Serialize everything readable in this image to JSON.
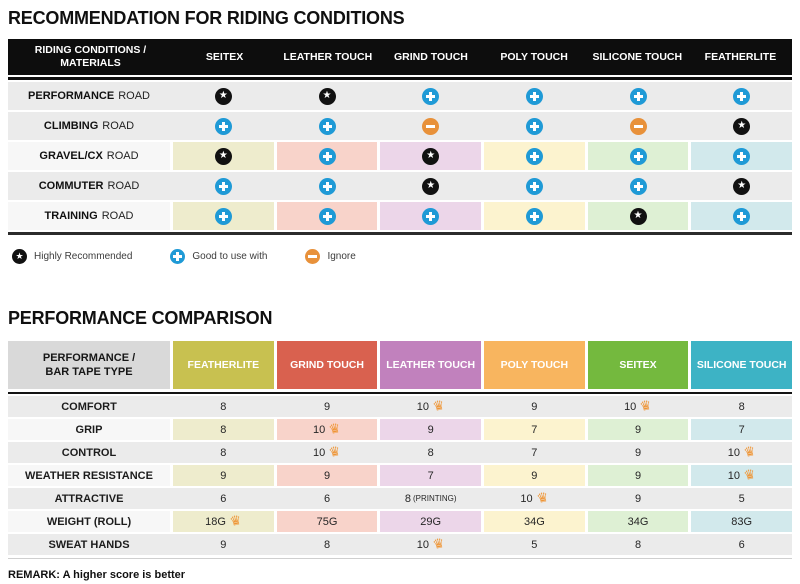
{
  "colors": {
    "named": {
      "header-black": "#0d0d0d",
      "row-gray": "#ebebeb",
      "label-light": "#f7f7f7",
      "icon-black": "#111111",
      "icon-blue": "#1f9ad6",
      "icon-orange": "#e8913a",
      "crown-orange": "#ef9433",
      "t2-header-gray": "#d9d9d9"
    },
    "tint_palette": [
      "#eeeccd",
      "#f8d3ca",
      "#ecd6e9",
      "#fcf3cf",
      "#def0d4",
      "#d2e9ec"
    ]
  },
  "chart_data": [
    {
      "type": "table",
      "title": "RECOMMENDATION FOR RIDING CONDITIONS",
      "header_label": [
        "RIDING CONDITIONS /",
        "MATERIALS"
      ],
      "columns": [
        "SEITEX",
        "LEATHER TOUCH",
        "GRIND TOUCH",
        "POLY TOUCH",
        "SILICONE TOUCH",
        "FEATHERLITE"
      ],
      "rows": [
        {
          "material": {
            "bold": "PERFORMANCE",
            "rest": "ROAD"
          },
          "cells": [
            "star",
            "star",
            "plus",
            "plus",
            "plus",
            "plus"
          ]
        },
        {
          "material": {
            "bold": "CLIMBING",
            "rest": "ROAD"
          },
          "cells": [
            "plus",
            "plus",
            "minus",
            "plus",
            "minus",
            "star"
          ]
        },
        {
          "material": {
            "bold": "GRAVEL/CX",
            "rest": "ROAD"
          },
          "cells": [
            "star",
            "plus",
            "star",
            "plus",
            "plus",
            "plus"
          ]
        },
        {
          "material": {
            "bold": "COMMUTER",
            "rest": "ROAD"
          },
          "cells": [
            "plus",
            "plus",
            "star",
            "plus",
            "plus",
            "star"
          ]
        },
        {
          "material": {
            "bold": "TRAINING",
            "rest": "ROAD"
          },
          "cells": [
            "plus",
            "plus",
            "plus",
            "plus",
            "star",
            "plus"
          ]
        }
      ],
      "legend": [
        {
          "icon": "star",
          "label": "Highly Recommended"
        },
        {
          "icon": "plus",
          "label": "Good to use with"
        },
        {
          "icon": "minus",
          "label": "Ignore"
        }
      ]
    },
    {
      "type": "table",
      "title": "PERFORMANCE COMPARISON",
      "header_label": [
        "PERFORMANCE /",
        "BAR TAPE TYPE"
      ],
      "columns": [
        {
          "label": "FEATHERLITE",
          "color": "#c8c150"
        },
        {
          "label": "GRIND TOUCH",
          "color": "#d9614f"
        },
        {
          "label": "LEATHER TOUCH",
          "color": "#c181bd"
        },
        {
          "label": "POLY TOUCH",
          "color": "#f8b55f"
        },
        {
          "label": "SEITEX",
          "color": "#74b93e"
        },
        {
          "label": "SILICONE TOUCH",
          "color": "#3db3c5"
        }
      ],
      "rows": [
        {
          "label": "COMFORT",
          "cells": [
            {
              "v": "8"
            },
            {
              "v": "9"
            },
            {
              "v": "10",
              "crown": true
            },
            {
              "v": "9"
            },
            {
              "v": "10",
              "crown": true
            },
            {
              "v": "8"
            }
          ]
        },
        {
          "label": "GRIP",
          "cells": [
            {
              "v": "8"
            },
            {
              "v": "10",
              "crown": true
            },
            {
              "v": "9"
            },
            {
              "v": "7"
            },
            {
              "v": "9"
            },
            {
              "v": "7"
            }
          ]
        },
        {
          "label": "CONTROL",
          "cells": [
            {
              "v": "8"
            },
            {
              "v": "10",
              "crown": true
            },
            {
              "v": "8"
            },
            {
              "v": "7"
            },
            {
              "v": "9"
            },
            {
              "v": "10",
              "crown": true
            }
          ]
        },
        {
          "label": "WEATHER RESISTANCE",
          "cells": [
            {
              "v": "9"
            },
            {
              "v": "9"
            },
            {
              "v": "7"
            },
            {
              "v": "9"
            },
            {
              "v": "9"
            },
            {
              "v": "10",
              "crown": true
            }
          ]
        },
        {
          "label": "ATTRACTIVE",
          "cells": [
            {
              "v": "6"
            },
            {
              "v": "6"
            },
            {
              "v": "8",
              "suffix": "(PRINTING)"
            },
            {
              "v": "10",
              "crown": true
            },
            {
              "v": "9"
            },
            {
              "v": "5"
            }
          ]
        },
        {
          "label": "WEIGHT (ROLL)",
          "cells": [
            {
              "v": "18G",
              "crown": true
            },
            {
              "v": "75G"
            },
            {
              "v": "29G"
            },
            {
              "v": "34G"
            },
            {
              "v": "34G"
            },
            {
              "v": "83G"
            }
          ]
        },
        {
          "label": "SWEAT HANDS",
          "cells": [
            {
              "v": "9"
            },
            {
              "v": "8"
            },
            {
              "v": "10",
              "crown": true
            },
            {
              "v": "5"
            },
            {
              "v": "8"
            },
            {
              "v": "6"
            }
          ]
        }
      ],
      "remark": "REMARK: A higher score is better"
    }
  ]
}
